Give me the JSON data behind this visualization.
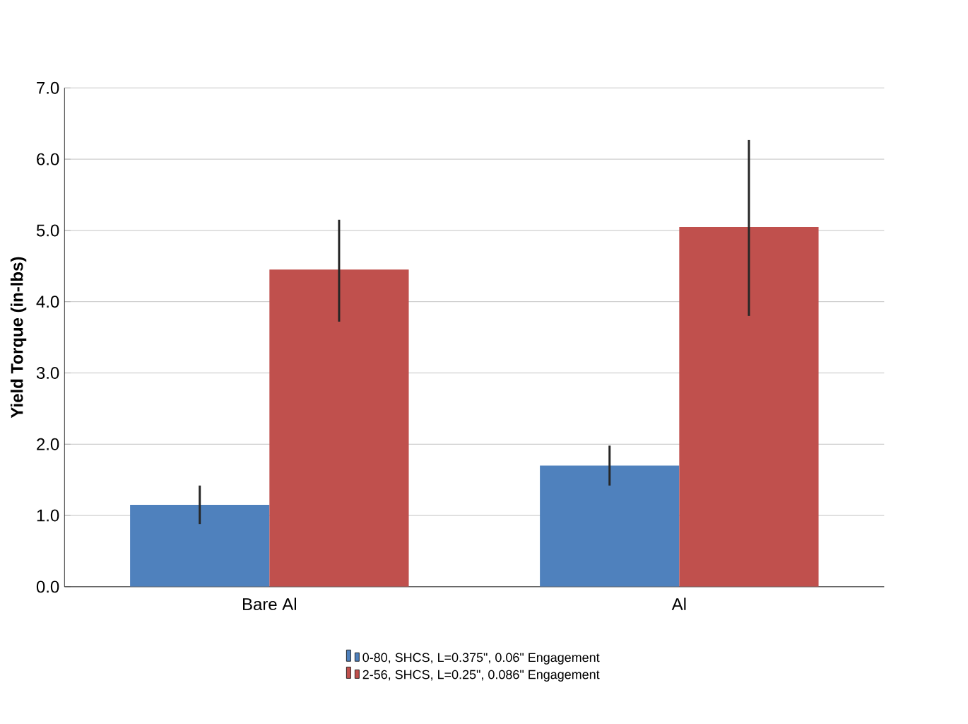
{
  "chart_data": {
    "type": "bar",
    "ylabel": "Yield Torque (in-lbs)",
    "categories": [
      "Bare Al",
      "Al"
    ],
    "series": [
      {
        "name": "0-80, SHCS, L=0.375\", 0.06\" Engagement",
        "color": "#4f81bd",
        "values": [
          1.15,
          1.7
        ],
        "errors": [
          [
            0.88,
            1.42
          ],
          [
            1.42,
            1.98
          ]
        ]
      },
      {
        "name": "2-56, SHCS, L=0.25\", 0.086\" Engagement",
        "color": "#c0504d",
        "values": [
          4.45,
          5.05
        ],
        "errors": [
          [
            3.72,
            5.15
          ],
          [
            3.8,
            6.27
          ]
        ]
      }
    ],
    "ylim": [
      0,
      7
    ],
    "yticks": [
      {
        "value": 0,
        "label": "0.0"
      },
      {
        "value": 1,
        "label": "1.0"
      },
      {
        "value": 2,
        "label": "2.0"
      },
      {
        "value": 3,
        "label": "3.0"
      },
      {
        "value": 4,
        "label": "4.0"
      },
      {
        "value": 5,
        "label": "5.0"
      },
      {
        "value": 6,
        "label": "6.0"
      },
      {
        "value": 7,
        "label": "7.0"
      }
    ],
    "grid": "y",
    "legend": "bottom"
  }
}
